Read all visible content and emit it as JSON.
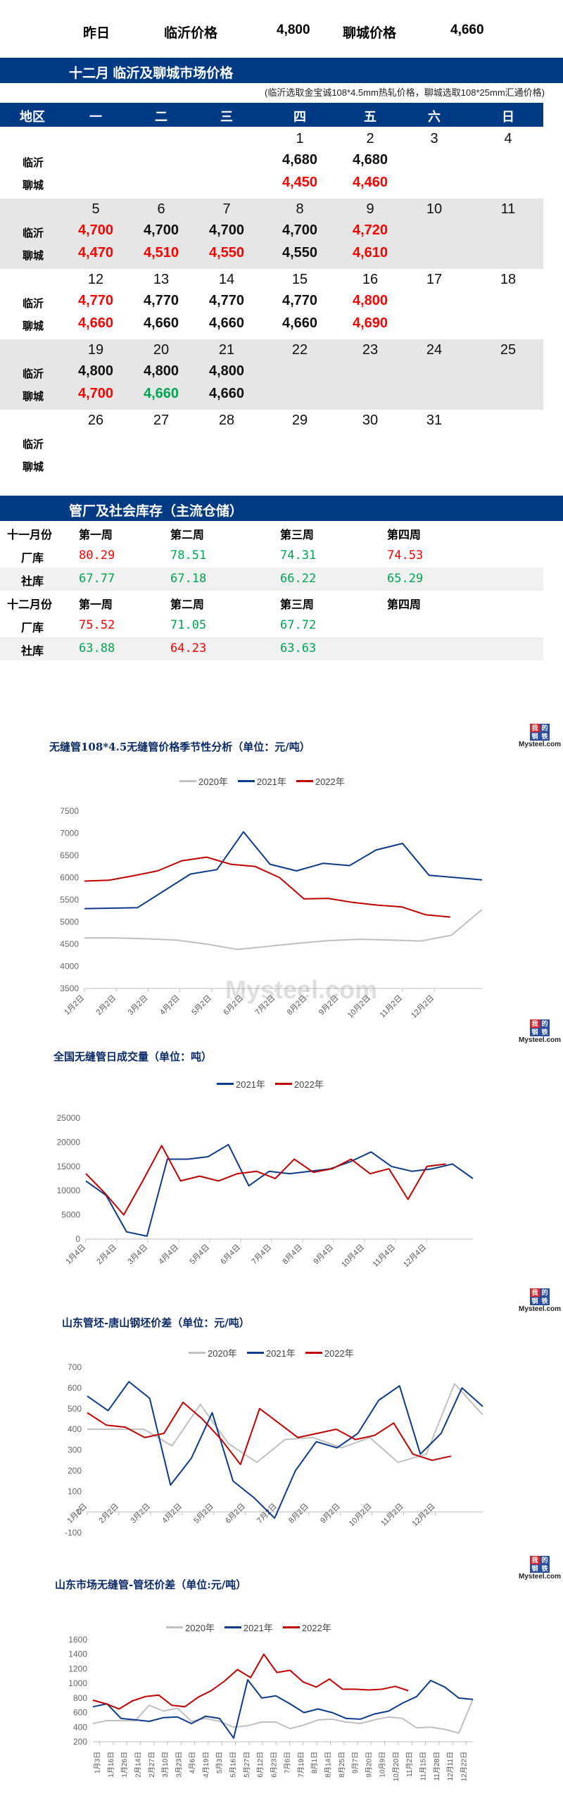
{
  "summary": {
    "label": "昨日",
    "linyi_label": "临沂价格",
    "linyi_value": "4,800",
    "liaocheng_label": "聊城价格",
    "liaocheng_value": "4,660"
  },
  "price_section": {
    "title": "十二月  临沂及聊城市场价格",
    "note": "(临沂选取金宝诚108*4.5mm热轧价格，聊城选取108*25mm汇通价格)",
    "headers": [
      "地区",
      "一",
      "二",
      "三",
      "四",
      "五",
      "六",
      "日"
    ],
    "row_labels": [
      "临沂",
      "聊城"
    ],
    "weeks": [
      {
        "days": [
          "",
          "",
          "",
          "1",
          "2",
          "3",
          "4"
        ],
        "linyi": [
          {
            "v": "",
            "c": ""
          },
          {
            "v": "",
            "c": ""
          },
          {
            "v": "",
            "c": ""
          },
          {
            "v": "4,680",
            "c": "black"
          },
          {
            "v": "4,680",
            "c": "black"
          },
          {
            "v": "",
            "c": ""
          },
          {
            "v": "",
            "c": ""
          }
        ],
        "liaocheng": [
          {
            "v": "",
            "c": ""
          },
          {
            "v": "",
            "c": ""
          },
          {
            "v": "",
            "c": ""
          },
          {
            "v": "4,450",
            "c": "red"
          },
          {
            "v": "4,460",
            "c": "red"
          },
          {
            "v": "",
            "c": ""
          },
          {
            "v": "",
            "c": ""
          }
        ]
      },
      {
        "days": [
          "5",
          "6",
          "7",
          "8",
          "9",
          "10",
          "11"
        ],
        "linyi": [
          {
            "v": "4,700",
            "c": "red"
          },
          {
            "v": "4,700",
            "c": "black"
          },
          {
            "v": "4,700",
            "c": "black"
          },
          {
            "v": "4,700",
            "c": "black"
          },
          {
            "v": "4,720",
            "c": "red"
          },
          {
            "v": "",
            "c": ""
          },
          {
            "v": "",
            "c": ""
          }
        ],
        "liaocheng": [
          {
            "v": "4,470",
            "c": "red"
          },
          {
            "v": "4,510",
            "c": "red"
          },
          {
            "v": "4,550",
            "c": "red"
          },
          {
            "v": "4,550",
            "c": "black"
          },
          {
            "v": "4,610",
            "c": "red"
          },
          {
            "v": "",
            "c": ""
          },
          {
            "v": "",
            "c": ""
          }
        ]
      },
      {
        "days": [
          "12",
          "13",
          "14",
          "15",
          "16",
          "17",
          "18"
        ],
        "linyi": [
          {
            "v": "4,770",
            "c": "red"
          },
          {
            "v": "4,770",
            "c": "black"
          },
          {
            "v": "4,770",
            "c": "black"
          },
          {
            "v": "4,770",
            "c": "black"
          },
          {
            "v": "4,800",
            "c": "red"
          },
          {
            "v": "",
            "c": ""
          },
          {
            "v": "",
            "c": ""
          }
        ],
        "liaocheng": [
          {
            "v": "4,660",
            "c": "red"
          },
          {
            "v": "4,660",
            "c": "black"
          },
          {
            "v": "4,660",
            "c": "black"
          },
          {
            "v": "4,660",
            "c": "black"
          },
          {
            "v": "4,690",
            "c": "red"
          },
          {
            "v": "",
            "c": ""
          },
          {
            "v": "",
            "c": ""
          }
        ]
      },
      {
        "days": [
          "19",
          "20",
          "21",
          "22",
          "23",
          "24",
          "25"
        ],
        "linyi": [
          {
            "v": "4,800",
            "c": "black"
          },
          {
            "v": "4,800",
            "c": "black"
          },
          {
            "v": "4,800",
            "c": "black"
          },
          {
            "v": "",
            "c": ""
          },
          {
            "v": "",
            "c": ""
          },
          {
            "v": "",
            "c": ""
          },
          {
            "v": "",
            "c": ""
          }
        ],
        "liaocheng": [
          {
            "v": "4,700",
            "c": "red"
          },
          {
            "v": "4,660",
            "c": "green"
          },
          {
            "v": "4,660",
            "c": "black"
          },
          {
            "v": "",
            "c": ""
          },
          {
            "v": "",
            "c": ""
          },
          {
            "v": "",
            "c": ""
          },
          {
            "v": "",
            "c": ""
          }
        ]
      },
      {
        "days": [
          "26",
          "27",
          "28",
          "29",
          "30",
          "31",
          ""
        ],
        "linyi": [
          {
            "v": "",
            "c": ""
          },
          {
            "v": "",
            "c": ""
          },
          {
            "v": "",
            "c": ""
          },
          {
            "v": "",
            "c": ""
          },
          {
            "v": "",
            "c": ""
          },
          {
            "v": "",
            "c": ""
          },
          {
            "v": "",
            "c": ""
          }
        ],
        "liaocheng": [
          {
            "v": "",
            "c": ""
          },
          {
            "v": "",
            "c": ""
          },
          {
            "v": "",
            "c": ""
          },
          {
            "v": "",
            "c": ""
          },
          {
            "v": "",
            "c": ""
          },
          {
            "v": "",
            "c": ""
          },
          {
            "v": "",
            "c": ""
          }
        ]
      }
    ]
  },
  "inventory_section": {
    "title": "管厂及社会库存（主流仓储）",
    "months": [
      {
        "label": "十一月份",
        "weeks": [
          "第一周",
          "第二周",
          "第三周",
          "第四周"
        ],
        "rows": [
          {
            "label": "厂库",
            "values": [
              {
                "v": "80.29",
                "c": "red"
              },
              {
                "v": "78.51",
                "c": "green"
              },
              {
                "v": "74.31",
                "c": "green"
              },
              {
                "v": "74.53",
                "c": "red"
              }
            ]
          },
          {
            "label": "社库",
            "values": [
              {
                "v": "67.77",
                "c": "green"
              },
              {
                "v": "67.18",
                "c": "green"
              },
              {
                "v": "66.22",
                "c": "green"
              },
              {
                "v": "65.29",
                "c": "green"
              }
            ]
          }
        ]
      },
      {
        "label": "十二月份",
        "weeks": [
          "第一周",
          "第二周",
          "第三周",
          "第四周"
        ],
        "rows": [
          {
            "label": "厂库",
            "values": [
              {
                "v": "75.52",
                "c": "red"
              },
              {
                "v": "71.05",
                "c": "green"
              },
              {
                "v": "67.72",
                "c": "green"
              },
              {
                "v": "",
                "c": ""
              }
            ]
          },
          {
            "label": "社库",
            "values": [
              {
                "v": "63.88",
                "c": "green"
              },
              {
                "v": "64.23",
                "c": "red"
              },
              {
                "v": "63.63",
                "c": "green"
              },
              {
                "v": "",
                "c": ""
              }
            ]
          }
        ]
      }
    ]
  },
  "logo": {
    "tiles": [
      "我",
      "的",
      "钢",
      "铁"
    ],
    "text": "Mysteel.com"
  },
  "colors": {
    "header_blue": "#003a85",
    "up_red": "#ff0000",
    "down_green": "#00a651",
    "s2020": "#c0c0c0",
    "s2021": "#0d3b8c",
    "s2022": "#c00000"
  },
  "chart_data": [
    {
      "type": "line",
      "title": "无缝管108*4.5无缝管价格季节性分析（单位：元/吨）",
      "xlabel": "",
      "ylabel": "",
      "ylim": [
        3500,
        7500
      ],
      "yticks": [
        3500,
        4000,
        4500,
        5000,
        5500,
        6000,
        6500,
        7000,
        7500
      ],
      "categories": [
        "1月2日",
        "2月2日",
        "3月2日",
        "4月2日",
        "5月2日",
        "6月2日",
        "7月2日",
        "8月2日",
        "9月2日",
        "10月2日",
        "11月2日",
        "12月2日"
      ],
      "legend": [
        "2020年",
        "2021年",
        "2022年"
      ],
      "series": [
        {
          "name": "2020年",
          "values": [
            4640,
            4640,
            4620,
            4590,
            4500,
            4380,
            4450,
            4520,
            4580,
            4610,
            4590,
            4570,
            4700,
            5280
          ]
        },
        {
          "name": "2021年",
          "values": [
            5300,
            5310,
            5320,
            5700,
            6080,
            6180,
            7030,
            6300,
            6150,
            6320,
            6270,
            6620,
            6770,
            6050,
            6000,
            5950
          ]
        },
        {
          "name": "2022年",
          "values": [
            5920,
            5940,
            6040,
            6150,
            6380,
            6460,
            6300,
            6250,
            6000,
            5520,
            5530,
            5440,
            5380,
            5340,
            5160,
            5110
          ]
        }
      ]
    },
    {
      "type": "line",
      "title": "全国无缝管日成交量（单位：吨）",
      "xlabel": "",
      "ylabel": "",
      "ylim": [
        0,
        25000
      ],
      "yticks": [
        0,
        5000,
        10000,
        15000,
        20000,
        25000
      ],
      "categories": [
        "1月4日",
        "2月4日",
        "3月4日",
        "4月4日",
        "5月4日",
        "6月4日",
        "7月4日",
        "8月4日",
        "9月4日",
        "10月4日",
        "11月4日",
        "12月4日"
      ],
      "legend": [
        "2021年",
        "2022年"
      ],
      "series": [
        {
          "name": "2021年",
          "values": [
            12000,
            9000,
            1500,
            600,
            16500,
            16500,
            17000,
            19500,
            11000,
            14000,
            13500,
            14000,
            14500,
            16000,
            18000,
            15000,
            14000,
            14500,
            15500,
            12500
          ]
        },
        {
          "name": "2022年",
          "values": [
            13500,
            9500,
            5000,
            12000,
            19300,
            12000,
            13000,
            12000,
            13500,
            14000,
            12500,
            16500,
            13800,
            14500,
            16500,
            13500,
            14500,
            8200,
            15000,
            15500
          ]
        }
      ]
    },
    {
      "type": "line",
      "title": "山东管坯-唐山钢坯价差（单位：元/吨）",
      "xlabel": "",
      "ylabel": "",
      "ylim": [
        -100,
        700
      ],
      "yticks": [
        -100,
        0,
        100,
        200,
        300,
        400,
        500,
        600,
        700
      ],
      "categories": [
        "1月2日",
        "2月2日",
        "3月2日",
        "4月2日",
        "5月2日",
        "6月2日",
        "7月2日",
        "8月2日",
        "9月2日",
        "10月2日",
        "11月2日",
        "12月2日"
      ],
      "legend": [
        "2020年",
        "2021年",
        "2022年"
      ],
      "series": [
        {
          "name": "2020年",
          "values": [
            400,
            400,
            400,
            320,
            520,
            330,
            240,
            350,
            360,
            310,
            360,
            240,
            280,
            620,
            470
          ]
        },
        {
          "name": "2021年",
          "values": [
            560,
            490,
            630,
            550,
            130,
            260,
            480,
            150,
            70,
            -30,
            200,
            340,
            310,
            380,
            540,
            610,
            280,
            380,
            600,
            510
          ]
        },
        {
          "name": "2022年",
          "values": [
            480,
            420,
            410,
            360,
            380,
            530,
            450,
            350,
            230,
            500,
            430,
            360,
            380,
            400,
            350,
            370,
            430,
            280,
            250,
            270
          ]
        }
      ]
    },
    {
      "type": "line",
      "title": "山东市场无缝管-管坯价差（单位:元/吨）",
      "xlabel": "",
      "ylabel": "",
      "ylim": [
        200,
        1600
      ],
      "yticks": [
        200,
        400,
        600,
        800,
        1000,
        1200,
        1400,
        1600
      ],
      "categories": [
        "1月3日",
        "1月16日",
        "1月26日",
        "2月14日",
        "2月27日",
        "3月10日",
        "3月23日",
        "4月6日",
        "4月19日",
        "5月3日",
        "5月16日",
        "5月27日",
        "6月12日",
        "6月23日",
        "7月6日",
        "7月19日",
        "8月1日",
        "8月14日",
        "8月25日",
        "9月7日",
        "9月20日",
        "10月9日",
        "10月20日",
        "11月2日",
        "11月15日",
        "11月28日",
        "12月11日",
        "12月22日"
      ],
      "legend": [
        "2020年",
        "2021年",
        "2022年"
      ],
      "series": [
        {
          "name": "2020年",
          "values": [
            450,
            490,
            490,
            490,
            700,
            620,
            660,
            480,
            520,
            480,
            400,
            420,
            470,
            470,
            380,
            430,
            500,
            510,
            470,
            450,
            500,
            540,
            520,
            390,
            400,
            370,
            320,
            780
          ]
        },
        {
          "name": "2021年",
          "values": [
            680,
            720,
            520,
            500,
            480,
            530,
            540,
            450,
            550,
            520,
            250,
            1050,
            800,
            830,
            720,
            600,
            650,
            600,
            520,
            510,
            580,
            620,
            730,
            820,
            1040,
            950,
            800,
            780
          ]
        },
        {
          "name": "2022年",
          "values": [
            770,
            720,
            650,
            760,
            820,
            840,
            700,
            680,
            810,
            900,
            1030,
            1190,
            1080,
            1400,
            1150,
            1180,
            1020,
            950,
            1060,
            920,
            920,
            910,
            920,
            960,
            900
          ]
        }
      ]
    }
  ]
}
